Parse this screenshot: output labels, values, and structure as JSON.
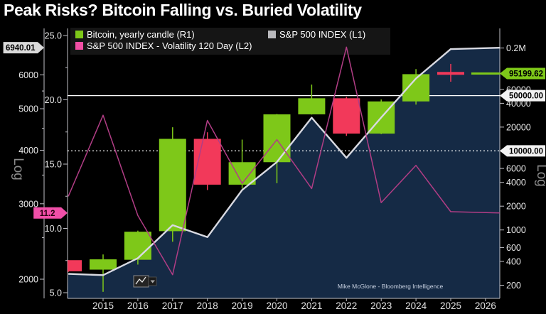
{
  "title": "Peak Risks? Bitcoin Falling vs. Buried Volatility",
  "legend": {
    "items": [
      {
        "label": "Bitcoin, yearly candle (R1)",
        "color": "#7ec819"
      },
      {
        "label": "S&P 500 INDEX  (L1)",
        "color": "#b9b9bd"
      },
      {
        "label": "S&P 500 INDEX - Volatility 120 Day (L2)",
        "color": "#f24fa4"
      }
    ]
  },
  "source_label": "Mike McGlone - Bloomberg Intelligence",
  "toolbar": {
    "chart_type_button_icon": "line-chart-with-caret"
  },
  "colors": {
    "up": "#7ec819",
    "down": "#f2395a",
    "sp500_line": "#d9dae2",
    "volatility_line": "#b13d85",
    "area_fill": "#152a45",
    "background": "#000000",
    "axis": "#c0c0c6",
    "label": "#e8e8e8",
    "legend_bg": "#161616"
  },
  "axes": {
    "left_outer": {
      "title": "S&P 500 INDEX (L1)",
      "scale": "Log",
      "ticks": [
        {
          "value": 6000,
          "label": "6000"
        },
        {
          "value": 5000,
          "label": "5000"
        },
        {
          "value": 4000,
          "label": "4000"
        },
        {
          "value": 3000,
          "label": "3000"
        },
        {
          "value": 2000,
          "label": "2000"
        }
      ],
      "minor_ticks": [
        5500,
        4500,
        3500,
        2500
      ]
    },
    "left_inner": {
      "title": "S&P 500 Volatility 120 Day (L2)",
      "scale": "linear",
      "ticks": [
        {
          "value": 25,
          "label": "25.0"
        },
        {
          "value": 20,
          "label": "20.0"
        },
        {
          "value": 15,
          "label": "15.0"
        },
        {
          "value": 10,
          "label": "10.0"
        },
        {
          "value": 5,
          "label": "5.0"
        }
      ],
      "minor_ticks": [
        22.5,
        17.5,
        12.5,
        7.5
      ]
    },
    "right": {
      "title": "Bitcoin (R1)",
      "scale": "Log",
      "ticks": [
        {
          "value": 200000,
          "label": "0.2M"
        },
        {
          "value": 60000,
          "label": "60000"
        },
        {
          "value": 40000,
          "label": "40000"
        },
        {
          "value": 20000,
          "label": "20000"
        },
        {
          "value": 6000,
          "label": "6000"
        },
        {
          "value": 4000,
          "label": "4000"
        },
        {
          "value": 2000,
          "label": "2000"
        },
        {
          "value": 1000,
          "label": "1000"
        },
        {
          "value": 600,
          "label": "600"
        },
        {
          "value": 400,
          "label": "400"
        },
        {
          "value": 200,
          "label": "200"
        }
      ]
    },
    "x": {
      "ticks": [
        "2015",
        "2016",
        "2017",
        "2018",
        "2019",
        "2020",
        "2021",
        "2022",
        "2023",
        "2024",
        "2025",
        "2026"
      ]
    }
  },
  "badges": {
    "left": [
      {
        "label": "6940.01",
        "value": 6940.01,
        "axis": "L1",
        "bg": "#d9d9d9",
        "fg": "#000000"
      },
      {
        "label": "11.2",
        "value": 11.2,
        "axis": "L2",
        "bg": "#f04fa8",
        "fg": "#26000f"
      }
    ],
    "right": [
      {
        "label": "95199.62",
        "value": 95199.62,
        "bg": "#7ec819",
        "fg": "#000000"
      },
      {
        "label": "50000.00",
        "value": 50000,
        "bg": "#f2f2f2",
        "fg": "#000000"
      },
      {
        "label": "10000.00",
        "value": 10000,
        "bg": "#f2f2f2",
        "fg": "#000000"
      }
    ]
  },
  "chart_data": {
    "type": "mixed",
    "title": "Peak Risks? Bitcoin Falling vs. Buried Volatility",
    "axis_ranges": {
      "R1_log": [
        200,
        240000
      ],
      "L1_log": [
        1900,
        7600
      ],
      "L2_linear": [
        4.5,
        26
      ]
    },
    "reference_lines": [
      {
        "axis": "R1",
        "value": 50000,
        "style": "solid"
      },
      {
        "axis": "R1",
        "value": 10000,
        "style": "dotted"
      }
    ],
    "last_values": {
      "bitcoin": 95199.62,
      "sp500": 6940.01,
      "volatility": 11.2
    },
    "series": [
      {
        "name": "Bitcoin, yearly candle",
        "type": "candlestick",
        "axis": "R1",
        "data": [
          {
            "year": 2014,
            "open": 415,
            "high": 415,
            "low": 295,
            "close": 300,
            "partial": true
          },
          {
            "year": 2015,
            "open": 315,
            "high": 490,
            "low": 165,
            "close": 425
          },
          {
            "year": 2016,
            "open": 420,
            "high": 980,
            "low": 365,
            "close": 950
          },
          {
            "year": 2017,
            "open": 965,
            "high": 19900,
            "low": 710,
            "close": 14200
          },
          {
            "year": 2018,
            "open": 14200,
            "high": 17200,
            "low": 3200,
            "close": 3740
          },
          {
            "year": 2019,
            "open": 3740,
            "high": 13900,
            "low": 3350,
            "close": 7200
          },
          {
            "year": 2020,
            "open": 7200,
            "high": 29300,
            "low": 3900,
            "close": 29000
          },
          {
            "year": 2021,
            "open": 29000,
            "high": 69000,
            "low": 28800,
            "close": 46300
          },
          {
            "year": 2022,
            "open": 46300,
            "high": 48200,
            "low": 15500,
            "close": 16550
          },
          {
            "year": 2023,
            "open": 16550,
            "high": 44700,
            "low": 16300,
            "close": 42250
          },
          {
            "year": 2024,
            "open": 42250,
            "high": 108300,
            "low": 38500,
            "close": 93400
          },
          {
            "year": 2025,
            "open": 96000,
            "high": 126000,
            "low": 75000,
            "close": 95200,
            "doji": true
          }
        ]
      },
      {
        "name": "S&P 500 INDEX",
        "type": "area-line",
        "axis": "L1",
        "data": [
          {
            "year": 2014,
            "value": 2058
          },
          {
            "year": 2015,
            "value": 2044
          },
          {
            "year": 2016,
            "value": 2239
          },
          {
            "year": 2017,
            "value": 2674
          },
          {
            "year": 2018,
            "value": 2507
          },
          {
            "year": 2019,
            "value": 3231
          },
          {
            "year": 2020,
            "value": 3756
          },
          {
            "year": 2021,
            "value": 4766
          },
          {
            "year": 2022,
            "value": 3840
          },
          {
            "year": 2023,
            "value": 4770
          },
          {
            "year": 2024,
            "value": 5882
          },
          {
            "year": 2025,
            "value": 6890
          },
          {
            "year": 2026,
            "value": 6940.01,
            "edge": true
          }
        ]
      },
      {
        "name": "S&P 500 INDEX - Volatility 120 Day",
        "type": "line",
        "axis": "L2",
        "data": [
          {
            "year": 2014,
            "value": 12.5
          },
          {
            "year": 2015,
            "value": 18.8
          },
          {
            "year": 2016,
            "value": 11.0
          },
          {
            "year": 2017,
            "value": 6.4
          },
          {
            "year": 2018,
            "value": 18.4
          },
          {
            "year": 2019,
            "value": 13.5
          },
          {
            "year": 2020,
            "value": 16.9
          },
          {
            "year": 2021,
            "value": 13.1
          },
          {
            "year": 2022,
            "value": 24.1
          },
          {
            "year": 2023,
            "value": 12.0
          },
          {
            "year": 2024,
            "value": 14.9
          },
          {
            "year": 2025,
            "value": 11.3
          },
          {
            "year": 2026,
            "value": 11.2,
            "edge": true
          }
        ]
      }
    ]
  }
}
